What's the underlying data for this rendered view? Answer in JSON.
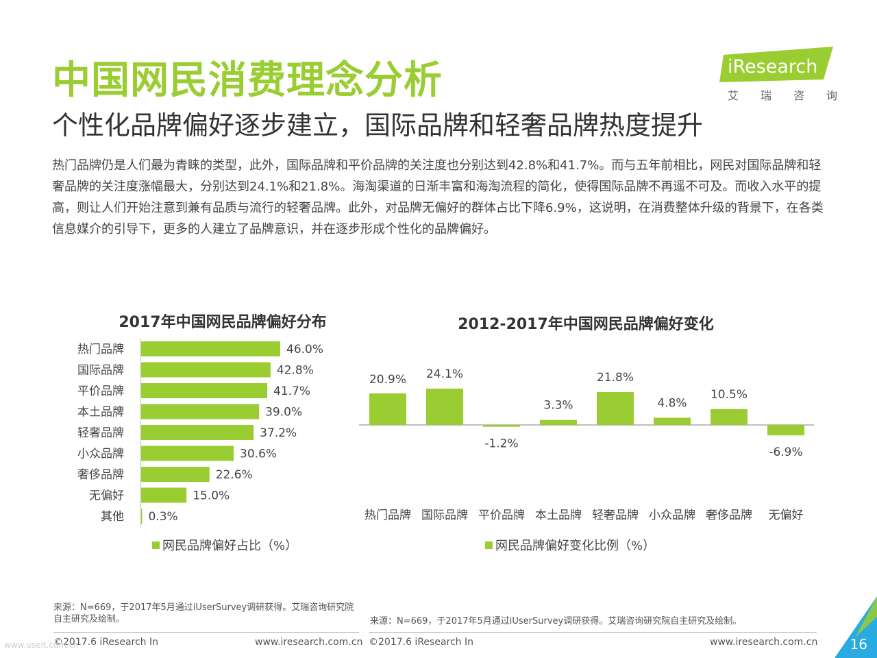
{
  "header": {
    "title": "中国网民消费理念分析",
    "subtitle": "个性化品牌偏好逐步建立，国际品牌和轻奢品牌热度提升",
    "paragraph": "热门品牌仍是人们最为青睐的类型，此外，国际品牌和平价品牌的关注度也分别达到42.8%和41.7%。而与五年前相比，网民对国际品牌和轻奢品牌的关注度涨幅最大，分别达到24.1%和21.8%。海淘渠道的日渐丰富和海淘流程的简化，使得国际品牌不再遥不可及。而收入水平的提高，则让人们开始注意到兼有品质与流行的轻奢品牌。此外，对品牌无偏好的群体占比下降6.9%，这说明，在消费整体升级的背景下，在各类信息媒介的引导下，更多的人建立了品牌意识，并在逐步形成个性化的品牌偏好。"
  },
  "logo": {
    "text": "iResearch",
    "sub": [
      "艾",
      "瑞",
      "咨",
      "询"
    ],
    "color": "#9acd32"
  },
  "colors": {
    "accent": "#9acd32",
    "corner": "#29abe2"
  },
  "chart_data": [
    {
      "type": "bar",
      "orientation": "horizontal",
      "title": "2017年中国网民品牌偏好分布",
      "categories": [
        "热门品牌",
        "国际品牌",
        "平价品牌",
        "本土品牌",
        "轻奢品牌",
        "小众品牌",
        "奢侈品牌",
        "无偏好",
        "其他"
      ],
      "series": [
        {
          "name": "网民品牌偏好占比（%）",
          "values": [
            46.0,
            42.8,
            41.7,
            39.0,
            37.2,
            30.6,
            22.6,
            15.0,
            0.3
          ]
        }
      ],
      "labels": [
        "46.0%",
        "42.8%",
        "41.7%",
        "39.0%",
        "37.2%",
        "30.6%",
        "22.6%",
        "15.0%",
        "0.3%"
      ],
      "xlim": [
        0,
        46.0
      ],
      "legend": "bottom",
      "grid": false,
      "color": "#9acd32"
    },
    {
      "type": "bar",
      "orientation": "vertical",
      "title": "2012-2017年中国网民品牌偏好变化",
      "categories": [
        "热门品牌",
        "国际品牌",
        "平价品牌",
        "本土品牌",
        "轻奢品牌",
        "小众品牌",
        "奢侈品牌",
        "无偏好"
      ],
      "series": [
        {
          "name": "网民品牌偏好变化比例（%）",
          "values": [
            20.9,
            24.1,
            -1.2,
            3.3,
            21.8,
            4.8,
            10.5,
            -6.9
          ]
        }
      ],
      "labels": [
        "20.9%",
        "24.1%",
        "-1.2%",
        "3.3%",
        "21.8%",
        "4.8%",
        "10.5%",
        "-6.9%"
      ],
      "ylim": [
        -6.9,
        24.1
      ],
      "legend": "bottom",
      "grid": false,
      "color": "#9acd32"
    }
  ],
  "sources": {
    "left": "来源：N=669，于2017年5月通过iUserSurvey调研获得。艾瑞咨询研究院自主研究及绘制。",
    "right": "来源：N=669，于2017年5月通过iUserSurvey调研获得。艾瑞咨询研究院自主研究及绘制。"
  },
  "footer": {
    "copyright_left": "©2017.6 iResearch In",
    "url_left": "www.iresearch.com.cn",
    "copyright_right": "©2017.6 iResearch In",
    "url_right": "www.iresearch.com.cn",
    "page": "16",
    "watermark": "www.useit.com.cn"
  }
}
